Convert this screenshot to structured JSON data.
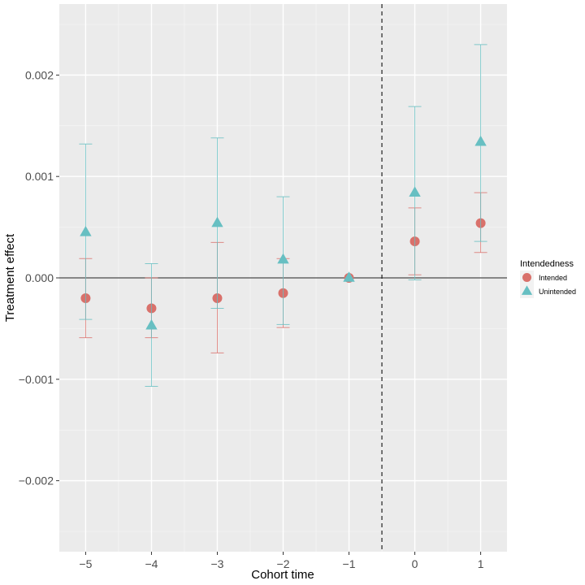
{
  "chart_data": {
    "type": "scatter",
    "title": "",
    "xlabel": "Cohort time",
    "ylabel": "Treatment effect",
    "x": [
      -5,
      -4,
      -3,
      -2,
      -1,
      0,
      1
    ],
    "x_tick_labels": [
      "−5",
      "−4",
      "−3",
      "−2",
      "−1",
      "0",
      "1"
    ],
    "y_ticks": [
      -0.002,
      -0.001,
      0.0,
      0.001,
      0.002
    ],
    "y_tick_labels": [
      "−0.002",
      "−0.001",
      "0.000",
      "0.001",
      "0.002"
    ],
    "xlim": [
      -5.4,
      1.4
    ],
    "ylim": [
      -0.0027,
      0.0027
    ],
    "reference_hline": 0,
    "reference_vline": -0.5,
    "legend": {
      "title": "Intendedness",
      "position": "right"
    },
    "series": [
      {
        "name": "Intended",
        "marker": "circle",
        "color": "#d9716b",
        "values": [
          -0.0002,
          -0.0003,
          -0.0002,
          -0.00015,
          0.0,
          0.00036,
          0.00054
        ],
        "lower": [
          -0.00059,
          -0.00059,
          -0.00074,
          -0.00049,
          0.0,
          3e-05,
          0.00025
        ],
        "upper": [
          0.00019,
          0.0,
          0.00035,
          0.00019,
          0.0,
          0.00069,
          0.00084
        ]
      },
      {
        "name": "Unintended",
        "marker": "triangle",
        "color": "#67bfc2",
        "values": [
          0.00045,
          -0.00047,
          0.00054,
          0.00018,
          0.0,
          0.00084,
          0.00134
        ],
        "lower": [
          -0.00041,
          -0.00107,
          -0.0003,
          -0.00046,
          0.0,
          -2e-05,
          0.00036
        ],
        "upper": [
          0.00132,
          0.00014,
          0.00138,
          0.0008,
          0.0,
          0.00169,
          0.0023
        ]
      }
    ]
  }
}
